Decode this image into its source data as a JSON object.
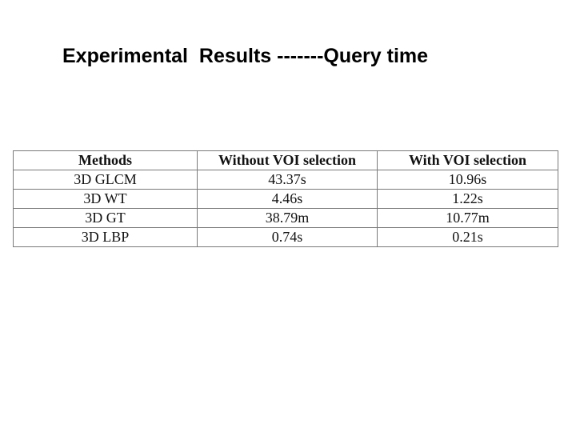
{
  "slide": {
    "title": "Experimental  Results -------Query time"
  },
  "table": {
    "headers": [
      "Methods",
      "Without VOI selection",
      "With VOI selection"
    ],
    "rows": [
      [
        "3D GLCM",
        "43.37s",
        "10.96s"
      ],
      [
        "3D WT",
        "4.46s",
        "1.22s"
      ],
      [
        "3D GT",
        "38.79m",
        "10.77m"
      ],
      [
        "3D LBP",
        "0.74s",
        "0.21s"
      ]
    ]
  }
}
